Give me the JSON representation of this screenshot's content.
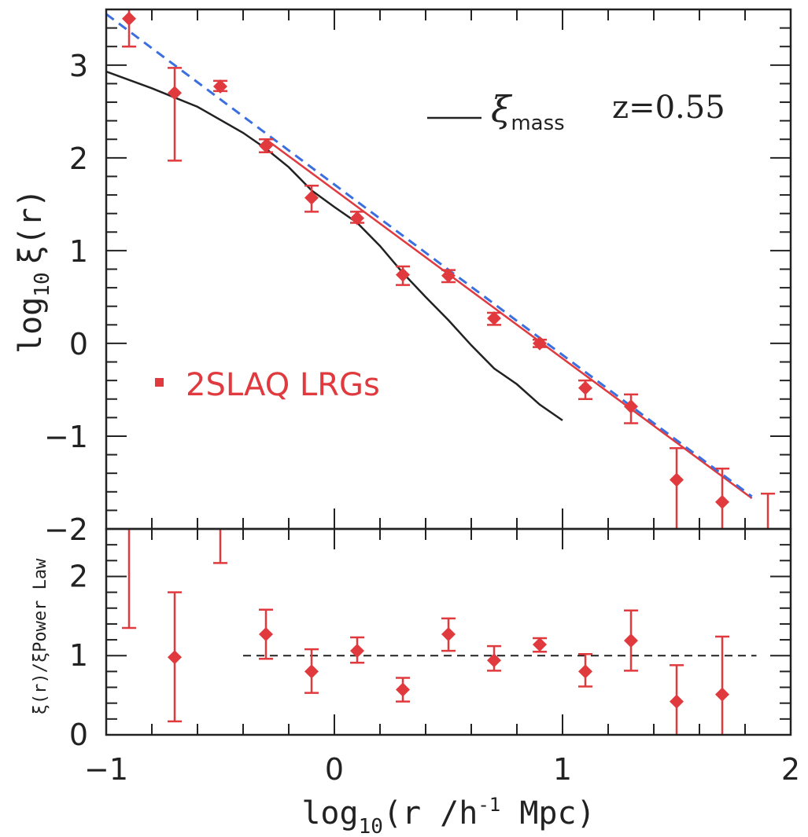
{
  "chart_data": [
    {
      "type": "scatter",
      "panel": "top",
      "ylabel_main": "log",
      "ylabel_sub": "10",
      "ylabel_rest": "ξ(r)",
      "xlim": [
        -1,
        2
      ],
      "ylim": [
        -2,
        3.6
      ],
      "x_ticks": [
        -1,
        0,
        1,
        2
      ],
      "y_ticks": [
        {
          "value": -2,
          "label": "−2"
        },
        {
          "value": -1,
          "label": "−1"
        },
        {
          "value": 0,
          "label": "0"
        },
        {
          "value": 1,
          "label": "1"
        },
        {
          "value": 2,
          "label": "2"
        },
        {
          "value": 3,
          "label": "3"
        }
      ],
      "annotations": {
        "xi_symbol": "ξ",
        "xi_sub": "mass",
        "redshift": "z=0.55",
        "legend": "2SLAQ LRGs"
      },
      "points": [
        {
          "x": -0.9,
          "y": 3.5,
          "ylo": 3.2,
          "yhi": 3.7
        },
        {
          "x": -0.7,
          "y": 2.7,
          "ylo": 1.97,
          "yhi": 2.97
        },
        {
          "x": -0.5,
          "y": 2.77,
          "ylo": 2.72,
          "yhi": 2.83
        },
        {
          "x": -0.3,
          "y": 2.13,
          "ylo": 2.06,
          "yhi": 2.2
        },
        {
          "x": -0.1,
          "y": 1.57,
          "ylo": 1.42,
          "yhi": 1.7
        },
        {
          "x": 0.1,
          "y": 1.35,
          "ylo": 1.3,
          "yhi": 1.42
        },
        {
          "x": 0.3,
          "y": 0.74,
          "ylo": 0.63,
          "yhi": 0.83
        },
        {
          "x": 0.5,
          "y": 0.73,
          "ylo": 0.66,
          "yhi": 0.79
        },
        {
          "x": 0.7,
          "y": 0.27,
          "ylo": 0.2,
          "yhi": 0.33
        },
        {
          "x": 0.9,
          "y": 0.0,
          "ylo": -0.04,
          "yhi": 0.04
        },
        {
          "x": 1.1,
          "y": -0.48,
          "ylo": -0.6,
          "yhi": -0.4
        },
        {
          "x": 1.3,
          "y": -0.68,
          "ylo": -0.86,
          "yhi": -0.55
        },
        {
          "x": 1.5,
          "y": -1.47,
          "ylo": -2.0,
          "yhi": -1.13
        },
        {
          "x": 1.7,
          "y": -1.71,
          "ylo": -2.0,
          "yhi": -1.35
        },
        {
          "x": 1.9,
          "y": null,
          "ylo": -2.0,
          "yhi": -1.62
        }
      ],
      "power_law_fit": {
        "x": [
          -0.3,
          1.83
        ],
        "y": [
          2.2,
          -1.67
        ]
      },
      "dashed_model": {
        "x": [
          -1.0,
          1.83
        ],
        "y": [
          3.55,
          -1.65
        ]
      },
      "xi_mass": {
        "x": [
          -1.0,
          -0.8,
          -0.6,
          -0.4,
          -0.3,
          -0.2,
          -0.1,
          0.0,
          0.1,
          0.2,
          0.3,
          0.4,
          0.5,
          0.6,
          0.7,
          0.8,
          0.9,
          1.0
        ],
        "y": [
          2.93,
          2.75,
          2.55,
          2.27,
          2.1,
          1.9,
          1.65,
          1.47,
          1.3,
          1.05,
          0.76,
          0.5,
          0.25,
          -0.02,
          -0.27,
          -0.44,
          -0.66,
          -0.83
        ]
      }
    },
    {
      "type": "scatter",
      "panel": "bottom",
      "ylabel": "ξ(r)/ξPower Law",
      "xlabel_main": "log",
      "xlabel_sub": "10",
      "xlabel_rest": "(r /h",
      "xlabel_sup": "-1",
      "xlabel_end": " Mpc)",
      "xlim": [
        -1,
        2
      ],
      "ylim": [
        0,
        2.6
      ],
      "x_ticks": [
        {
          "value": -1,
          "label": "−1"
        },
        {
          "value": 0,
          "label": "0"
        },
        {
          "value": 1,
          "label": "1"
        },
        {
          "value": 2,
          "label": "2"
        }
      ],
      "y_ticks": [
        {
          "value": 0,
          "label": "0"
        },
        {
          "value": 1,
          "label": "1"
        },
        {
          "value": 2,
          "label": "2"
        }
      ],
      "reference_line": {
        "y": 1,
        "x": [
          -0.4,
          1.85
        ]
      },
      "points": [
        {
          "x": -0.9,
          "y": null,
          "ylo": 1.35,
          "yhi": 2.6
        },
        {
          "x": -0.7,
          "y": 0.98,
          "ylo": 0.17,
          "yhi": 1.8
        },
        {
          "x": -0.5,
          "y": null,
          "ylo": 2.17,
          "yhi": 2.6
        },
        {
          "x": -0.3,
          "y": 1.27,
          "ylo": 0.96,
          "yhi": 1.58
        },
        {
          "x": -0.1,
          "y": 0.8,
          "ylo": 0.53,
          "yhi": 1.08
        },
        {
          "x": 0.1,
          "y": 1.06,
          "ylo": 0.91,
          "yhi": 1.23
        },
        {
          "x": 0.3,
          "y": 0.57,
          "ylo": 0.42,
          "yhi": 0.72
        },
        {
          "x": 0.5,
          "y": 1.27,
          "ylo": 1.06,
          "yhi": 1.47
        },
        {
          "x": 0.7,
          "y": 0.94,
          "ylo": 0.81,
          "yhi": 1.12
        },
        {
          "x": 0.9,
          "y": 1.14,
          "ylo": 1.05,
          "yhi": 1.22
        },
        {
          "x": 1.1,
          "y": 0.8,
          "ylo": 0.61,
          "yhi": 1.02
        },
        {
          "x": 1.3,
          "y": 1.19,
          "ylo": 0.81,
          "yhi": 1.57
        },
        {
          "x": 1.5,
          "y": 0.42,
          "ylo": 0.0,
          "yhi": 0.88
        },
        {
          "x": 1.7,
          "y": 0.51,
          "ylo": 0.0,
          "yhi": 1.24
        }
      ]
    }
  ],
  "colors": {
    "data": "#e03a3e",
    "fit": "#e03a3e",
    "dashed": "#3b6fe0",
    "mass": "#222222",
    "axis": "#222222"
  }
}
